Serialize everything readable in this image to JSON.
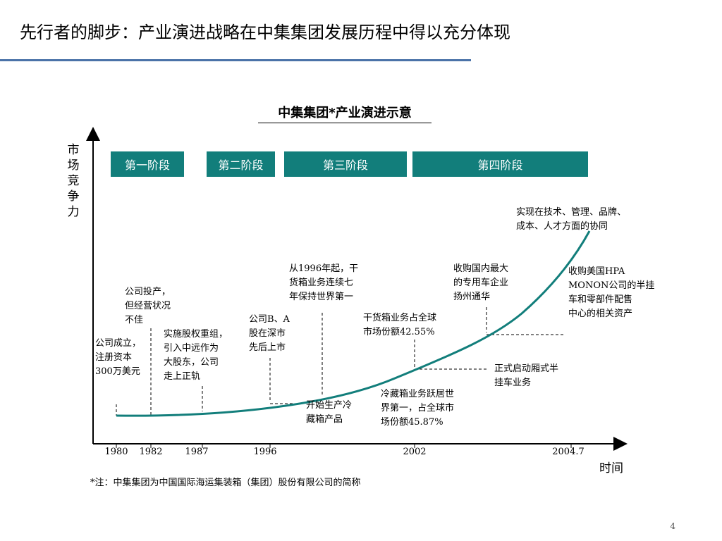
{
  "slide": {
    "title": "先行者的脚步：产业演进战略在中集集团发展历程中得以充分体现",
    "page_number": "4",
    "footnote": "*注：中集集团为中国国际海运集装箱（集团）股份有限公司的简称"
  },
  "diagram": {
    "title": "中集集团*产业演进示意",
    "y_axis_label": "市场竞争力",
    "x_axis_label": "时间",
    "stages": [
      "第一阶段",
      "第二阶段",
      "第三阶段",
      "第四阶段"
    ],
    "x_ticks": [
      "1980",
      "1982",
      "1987",
      "1996",
      "2002",
      "2004.7"
    ],
    "events": [
      {
        "id": "founding",
        "text": "公司成立，\n注册资本\n300万美元"
      },
      {
        "id": "production",
        "text": "公司投产，\n但经营状况\n不佳"
      },
      {
        "id": "restructure",
        "text": "实施股权重组，\n引入中远作为\n大股东，公司\n走上正轨"
      },
      {
        "id": "listing",
        "text": "公司B、A\n股在深市\n先后上市"
      },
      {
        "id": "dry-container-1996",
        "text": "从1996年起，干\n货箱业务连续七\n年保持世界第一"
      },
      {
        "id": "reefer-start",
        "text": "开始生产冷\n藏箱产品"
      },
      {
        "id": "dry-share",
        "text": "干货箱业务占全球\n市场份额42.55%"
      },
      {
        "id": "reefer-first",
        "text": "冷藏箱业务跃居世\n界第一，占全球市\n场份额45.87%"
      },
      {
        "id": "yangzhou",
        "text": "收购国内最大\n的专用车企业\n扬州通华"
      },
      {
        "id": "trailer",
        "text": "正式启动厢式半\n挂车业务"
      },
      {
        "id": "hpa-monon",
        "text": "收购美国HPA\nMONON公司的半挂\n车和零部件配售\n中心的相关资产"
      },
      {
        "id": "synergy",
        "text": "实现在技术、管理、品牌、\n成本、人才方面的协同"
      }
    ]
  },
  "colors": {
    "curve": "#127e7b",
    "stage_fill": "#127e7b",
    "title_rule": "#4a72a8"
  }
}
